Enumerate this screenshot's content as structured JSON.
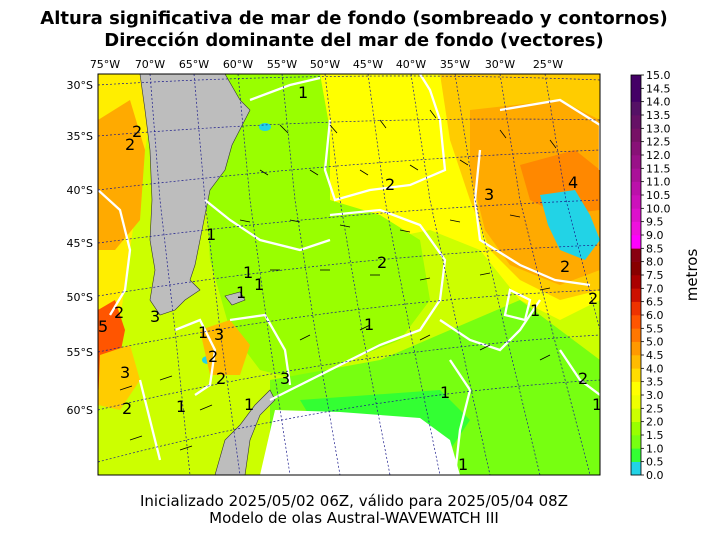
{
  "title_line1": "Altura significativa de mar de fondo (sombreado y contornos)",
  "title_line2": "Dirección dominante del mar de fondo (vectores)",
  "footer_line1": "Inicializado 2025/05/02 06Z, válido para 2025/05/04 08Z",
  "footer_line2": "Modelo de olas Austral-WAVEWATCH III",
  "lon_labels": [
    "75°W",
    "70°W",
    "65°W",
    "60°W",
    "55°W",
    "50°W",
    "45°W",
    "40°W",
    "35°W",
    "30°W",
    "25°W"
  ],
  "lat_labels": [
    "30°S",
    "35°S",
    "40°S",
    "45°S",
    "50°S",
    "55°S",
    "60°S"
  ],
  "colorbar": {
    "unit": "metros",
    "ticks": [
      "0.0",
      "0.5",
      "1.0",
      "1.5",
      "2.0",
      "2.5",
      "3.0",
      "3.5",
      "4.0",
      "4.5",
      "5.0",
      "5.5",
      "6.0",
      "6.5",
      "7.0",
      "7.5",
      "8.0",
      "8.5",
      "9.0",
      "9.5",
      "10.0",
      "10.5",
      "11.0",
      "11.5",
      "12.0",
      "12.5",
      "13.0",
      "13.5",
      "14.0",
      "14.5",
      "15.0"
    ],
    "colors": [
      "#22d3e6",
      "#33ff33",
      "#77ff11",
      "#99ff00",
      "#ccff00",
      "#eeff00",
      "#ffff00",
      "#ffdd00",
      "#ffbb00",
      "#ff9900",
      "#ff7700",
      "#ff5500",
      "#ee3300",
      "#cc1100",
      "#aa0000",
      "#880000",
      "#880011",
      "#ff00ff",
      "#ee11dd",
      "#dd11cc",
      "#cc11bb",
      "#bb11aa",
      "#aa1199",
      "#991188",
      "#881177",
      "#771166",
      "#661166",
      "#551166",
      "#440066",
      "#440066"
    ]
  },
  "contour_labels": [
    "1",
    "2",
    "2",
    "3",
    "4",
    "2",
    "2",
    "1",
    "1",
    "1",
    "1",
    "2",
    "1",
    "1",
    "5",
    "2",
    "3",
    "1",
    "3",
    "2",
    "2",
    "3",
    "1",
    "1",
    "3",
    "1",
    "1",
    "2",
    "2",
    "2",
    "1"
  ],
  "colors": {
    "land": "#bdbdbd",
    "ice": "#ffffff",
    "contour": "#ffffff",
    "grid": "#1a1a8c"
  }
}
